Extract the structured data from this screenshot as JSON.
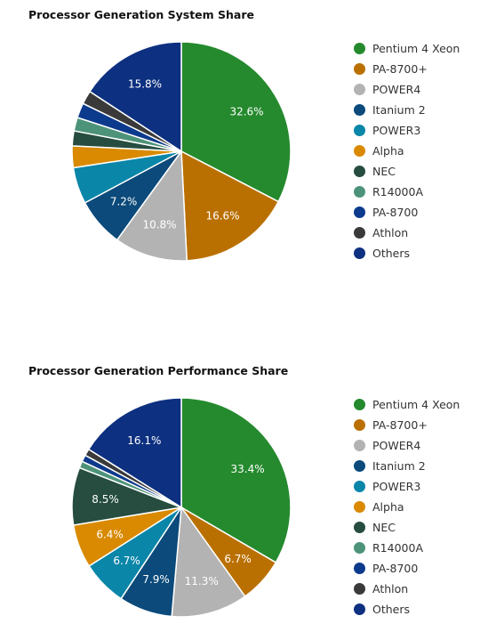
{
  "colors": {
    "Pentium 4 Xeon": "#258A2E",
    "PA-8700+": "#BA7000",
    "POWER4": "#B3B3B3",
    "Itanium 2": "#0B4A7A",
    "POWER3": "#0A86A8",
    "Alpha": "#D98A00",
    "NEC": "#264D3F",
    "R14000A": "#4D9379",
    "PA-8700": "#0C3A8C",
    "Athlon": "#3A3A3A",
    "Others": "#0D3080"
  },
  "chart_data": [
    {
      "type": "pie",
      "title": "Processor Generation System Share",
      "legend_position": "right",
      "slices": [
        {
          "label": "Pentium 4 Xeon",
          "value": 32.6,
          "data_label": "32.6%"
        },
        {
          "label": "PA-8700+",
          "value": 16.6,
          "data_label": "16.6%"
        },
        {
          "label": "POWER4",
          "value": 10.8,
          "data_label": "10.8%"
        },
        {
          "label": "Itanium 2",
          "value": 7.2,
          "data_label": "7.2%"
        },
        {
          "label": "POWER3",
          "value": 5.4,
          "data_label": ""
        },
        {
          "label": "Alpha",
          "value": 3.2,
          "data_label": ""
        },
        {
          "label": "NEC",
          "value": 2.2,
          "data_label": ""
        },
        {
          "label": "R14000A",
          "value": 2.0,
          "data_label": ""
        },
        {
          "label": "PA-8700",
          "value": 2.2,
          "data_label": ""
        },
        {
          "label": "Athlon",
          "value": 2.0,
          "data_label": ""
        },
        {
          "label": "Others",
          "value": 15.8,
          "data_label": "15.8%"
        }
      ]
    },
    {
      "type": "pie",
      "title": "Processor Generation Performance Share",
      "legend_position": "right",
      "slices": [
        {
          "label": "Pentium 4 Xeon",
          "value": 33.4,
          "data_label": "33.4%"
        },
        {
          "label": "PA-8700+",
          "value": 6.7,
          "data_label": "6.7%"
        },
        {
          "label": "POWER4",
          "value": 11.3,
          "data_label": "11.3%"
        },
        {
          "label": "Itanium 2",
          "value": 7.9,
          "data_label": "7.9%"
        },
        {
          "label": "POWER3",
          "value": 6.7,
          "data_label": "6.7%"
        },
        {
          "label": "Alpha",
          "value": 6.4,
          "data_label": "6.4%"
        },
        {
          "label": "NEC",
          "value": 8.5,
          "data_label": "8.5%"
        },
        {
          "label": "R14000A",
          "value": 1.0,
          "data_label": ""
        },
        {
          "label": "PA-8700",
          "value": 1.0,
          "data_label": ""
        },
        {
          "label": "Athlon",
          "value": 1.0,
          "data_label": ""
        },
        {
          "label": "Others",
          "value": 16.1,
          "data_label": "16.1%"
        }
      ]
    }
  ]
}
